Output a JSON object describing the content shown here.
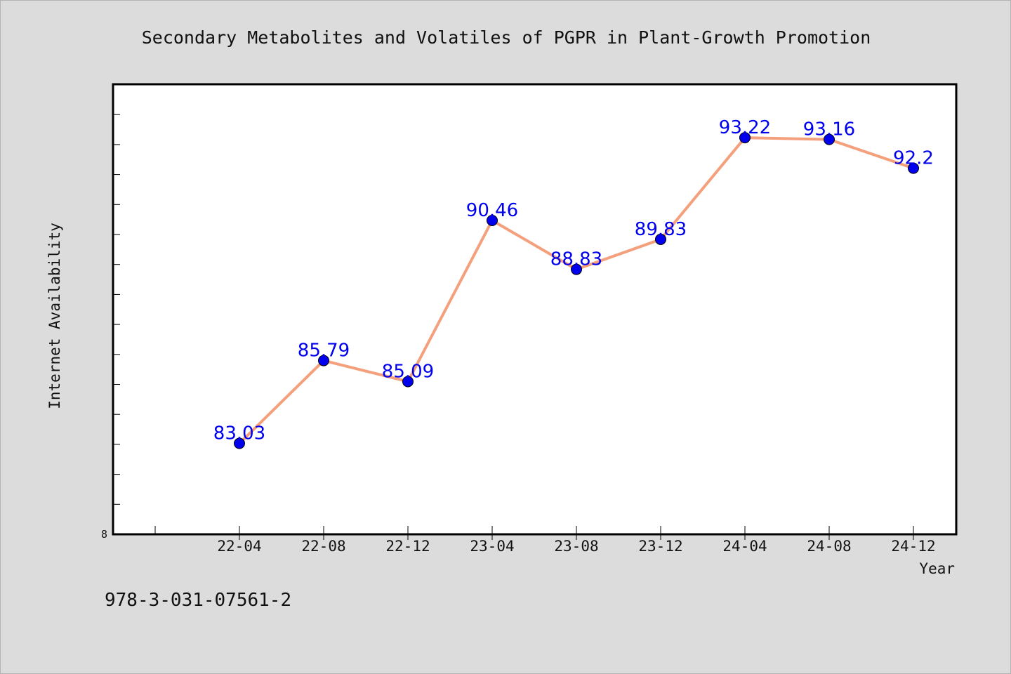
{
  "chart_data": {
    "type": "line",
    "title": "Secondary Metabolites and Volatiles of PGPR in Plant-Growth Promotion",
    "xlabel": "Year",
    "ylabel": "Internet Availability",
    "categories": [
      "22-04",
      "22-08",
      "22-12",
      "23-04",
      "23-08",
      "23-12",
      "24-04",
      "24-08",
      "24-12"
    ],
    "series": [
      {
        "values": [
          83.03,
          85.79,
          85.09,
          90.46,
          88.83,
          89.83,
          93.22,
          93.16,
          92.2
        ],
        "labels": [
          "83.03",
          "85.79",
          "85.09",
          "90.46",
          "88.83",
          "89.83",
          "93.22",
          "93.16",
          "92.2"
        ]
      }
    ],
    "ylim": [
      80,
      95
    ],
    "yticks_shown": [
      "8"
    ],
    "grid": false,
    "line_color": "#f4a07c",
    "marker_color": "#0000ee",
    "label_color": "#0000ee"
  },
  "footer": {
    "text": "978-3-031-07561-2"
  }
}
